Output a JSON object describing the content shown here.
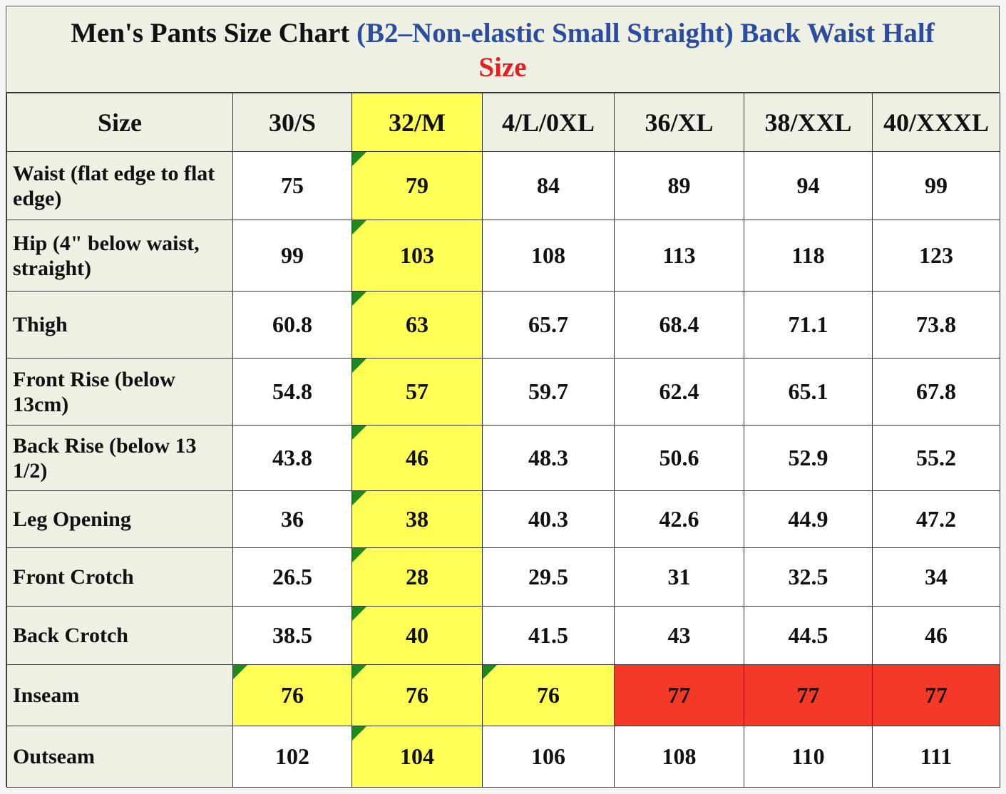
{
  "title": {
    "main": "Men's Pants Size Chart",
    "subtitle": "(B2–Non-elastic Small Straight) Back Waist Half",
    "highlight": "Size"
  },
  "table": {
    "header": [
      "Size",
      "30/S",
      "32/M",
      "4/L/0XL",
      "36/XL",
      "38/XXL",
      "40/XXXL"
    ],
    "rows": [
      [
        "Waist (flat edge to flat edge)",
        "75",
        "79",
        "84",
        "89",
        "94",
        "99"
      ],
      [
        "Hip (4\" below waist, straight)",
        "99",
        "103",
        "108",
        "113",
        "118",
        "123"
      ],
      [
        "Thigh",
        "60.8",
        "63",
        "65.7",
        "68.4",
        "71.1",
        "73.8"
      ],
      [
        "Front Rise (below 13cm)",
        "54.8",
        "57",
        "59.7",
        "62.4",
        "65.1",
        "67.8"
      ],
      [
        "Back Rise (below 13 1/2)",
        "43.8",
        "46",
        "48.3",
        "50.6",
        "52.9",
        "55.2"
      ],
      [
        "Leg Opening",
        "36",
        "38",
        "40.3",
        "42.6",
        "44.9",
        "47.2"
      ],
      [
        "Front Crotch",
        "26.5",
        "28",
        "29.5",
        "31",
        "32.5",
        "34"
      ],
      [
        "Back Crotch",
        "38.5",
        "40",
        "41.5",
        "43",
        "44.5",
        "46"
      ],
      [
        "Inseam",
        "76",
        "76",
        "76",
        "77",
        "77",
        "77"
      ],
      [
        "Outseam",
        "102",
        "104",
        "106",
        "108",
        "110",
        "111"
      ]
    ]
  }
}
